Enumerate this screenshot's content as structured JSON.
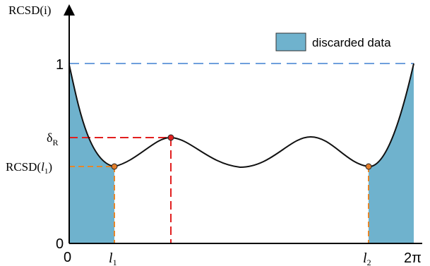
{
  "diagram": {
    "y_axis_label": "RCSD(i)",
    "y_ticks": {
      "one": "1",
      "delta": "δ",
      "delta_sub": "R",
      "rcsd_l1_prefix": "RCSD(",
      "rcsd_l1_var": "l",
      "rcsd_l1_sub": "1",
      "rcsd_l1_suffix": ")",
      "zero": "0"
    },
    "x_ticks": {
      "zero": "0",
      "l1_var": "l",
      "l1_sub": "1",
      "l2_var": "l",
      "l2_sub": "2",
      "two_pi": "2π"
    },
    "legend": {
      "label": "discarded data"
    },
    "colors": {
      "discarded_fill": "#6fb2cd",
      "curve": "#111111",
      "dashed_blue": "#6f9fdc",
      "dashed_red": "#e21f1f",
      "dashed_orange": "#e6862a",
      "marker_fill": "#e27d2a"
    }
  }
}
